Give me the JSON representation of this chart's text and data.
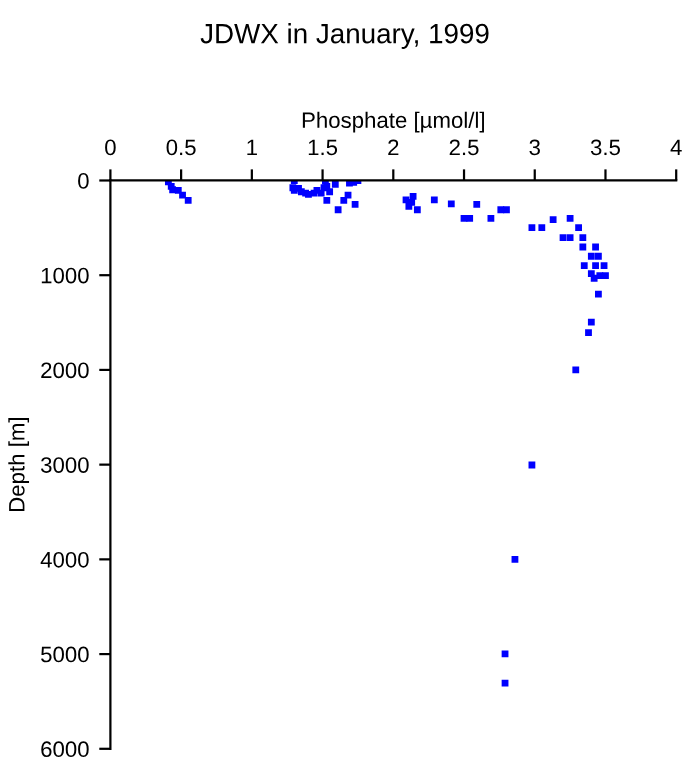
{
  "chart_data": {
    "type": "scatter",
    "title": "JDWX in January, 1999",
    "xlabel": "Phosphate [µmol/l]",
    "ylabel": "Depth [m]",
    "xlim": [
      0,
      4
    ],
    "xticks": [
      0,
      0.5,
      1,
      1.5,
      2,
      2.5,
      3,
      3.5,
      4
    ],
    "ylim": [
      6000,
      0
    ],
    "yticks": [
      0,
      1000,
      2000,
      3000,
      4000,
      5000,
      6000
    ],
    "marker": "square",
    "grid": false,
    "legend": false,
    "series": [
      {
        "color": "#0000ff",
        "x": [
          0.41,
          0.43,
          0.44,
          0.48,
          0.51,
          0.55,
          1.3,
          1.29,
          1.3,
          1.33,
          1.35,
          1.38,
          1.4,
          1.44,
          1.46,
          1.49,
          1.51,
          1.52,
          1.53,
          1.55,
          1.53,
          1.59,
          1.61,
          1.65,
          1.68,
          1.69,
          1.72,
          1.73,
          1.75,
          2.09,
          2.11,
          2.14,
          2.17,
          2.13,
          2.29,
          2.41,
          2.59,
          2.5,
          2.54,
          2.69,
          2.76,
          2.8,
          2.98,
          3.05,
          3.13,
          3.2,
          3.25,
          3.25,
          3.31,
          3.34,
          3.34,
          3.35,
          3.4,
          3.43,
          3.45,
          3.43,
          3.49,
          3.4,
          3.42,
          3.46,
          3.5,
          3.45,
          3.4,
          3.38,
          3.29,
          2.98,
          2.86,
          2.79,
          2.79
        ],
        "values": [
          14,
          63,
          98,
          105,
          154,
          210,
          0,
          77,
          105,
          84,
          119,
          133,
          147,
          133,
          105,
          133,
          77,
          7,
          63,
          119,
          210,
          42,
          309,
          210,
          154,
          28,
          21,
          253,
          0,
          204,
          274,
          168,
          309,
          232,
          204,
          246,
          253,
          400,
          400,
          400,
          309,
          309,
          498,
          498,
          414,
          604,
          604,
          400,
          498,
          604,
          702,
          898,
          800,
          702,
          800,
          898,
          898,
          983,
          1032,
          1004,
          1004,
          1200,
          1495,
          1607,
          2000,
          3004,
          4000,
          4997,
          5306
        ]
      }
    ]
  }
}
